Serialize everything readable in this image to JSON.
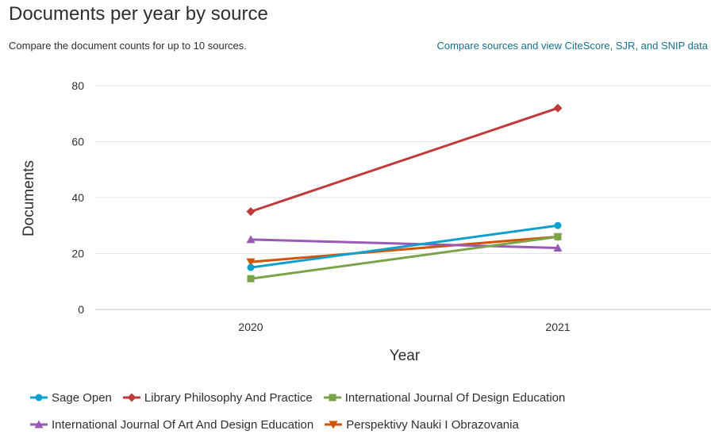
{
  "header": {
    "title": "Documents per year by source",
    "subtitle": "Compare the document counts for up to 10 sources.",
    "compare_link": "Compare sources and view CiteScore, SJR, and SNIP data"
  },
  "chart_data": {
    "type": "line",
    "title": "Documents per year by source",
    "xlabel": "Year",
    "ylabel": "Documents",
    "x": [
      "2020",
      "2021"
    ],
    "ylim": [
      0,
      80
    ],
    "yticks": [
      0,
      20,
      40,
      60,
      80
    ],
    "grid": true,
    "legend": "bottom",
    "series": [
      {
        "name": "Sage Open",
        "values": [
          15,
          30
        ],
        "color": "#0da0cf",
        "marker": "circle"
      },
      {
        "name": "Library Philosophy And Practice",
        "values": [
          35,
          72
        ],
        "color": "#c03a3a",
        "marker": "diamond"
      },
      {
        "name": "International Journal Of Design Education",
        "values": [
          11,
          26
        ],
        "color": "#7aa34a",
        "marker": "square"
      },
      {
        "name": "International Journal Of Art And Design Education",
        "values": [
          25,
          22
        ],
        "color": "#9b59b6",
        "marker": "triangle"
      },
      {
        "name": "Perspektivy Nauki I Obrazovania",
        "values": [
          17,
          26
        ],
        "color": "#d35400",
        "marker": "triangle-down"
      }
    ]
  }
}
